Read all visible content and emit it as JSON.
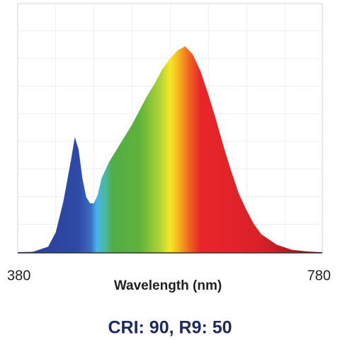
{
  "chart_data": {
    "type": "area",
    "caption": "CRI: 90, R9: 50",
    "x_label": "Wavelength (nm)",
    "x": [
      380,
      400,
      420,
      430,
      440,
      450,
      455,
      460,
      465,
      470,
      475,
      480,
      485,
      490,
      500,
      510,
      520,
      530,
      540,
      550,
      560,
      570,
      580,
      590,
      600,
      610,
      620,
      630,
      640,
      650,
      660,
      670,
      680,
      690,
      700,
      720,
      740,
      760,
      780
    ],
    "series": [
      {
        "values": [
          0.003,
          0.005,
          0.03,
          0.1,
          0.25,
          0.45,
          0.56,
          0.5,
          0.36,
          0.27,
          0.24,
          0.24,
          0.28,
          0.36,
          0.44,
          0.5,
          0.56,
          0.62,
          0.69,
          0.76,
          0.82,
          0.89,
          0.94,
          0.98,
          1.0,
          0.96,
          0.88,
          0.77,
          0.65,
          0.52,
          0.4,
          0.29,
          0.21,
          0.14,
          0.09,
          0.04,
          0.015,
          0.007,
          0.003
        ]
      }
    ],
    "xlim": [
      380,
      780
    ],
    "xticks": [
      380,
      780
    ],
    "ylim": [
      0,
      1.2
    ],
    "grid": true
  }
}
